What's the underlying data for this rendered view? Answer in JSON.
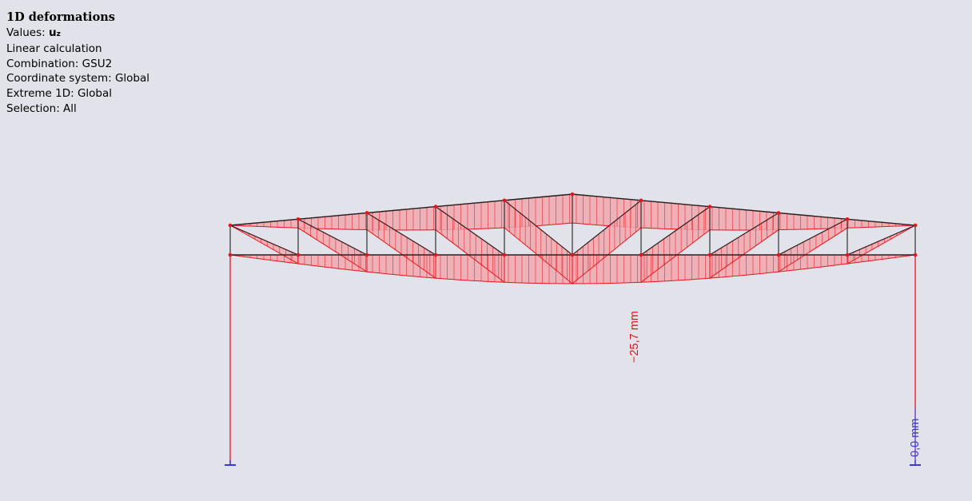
{
  "info_panel": {
    "title": "1D deformations",
    "values_label": "Values: ",
    "values_symbol": "u",
    "values_subscript": "z",
    "calculation": "Linear calculation",
    "combination": "Combination: GSU2",
    "coordinate_system": "Coordinate system: Global",
    "extreme": "Extreme 1D: Global",
    "selection": "Selection: All"
  },
  "results": {
    "max_label": "−25,7 mm",
    "support_label": "0,0 mm"
  },
  "colors": {
    "background": "#e1e2ea",
    "deformation_fill": "#f0a8ae",
    "deformation_line": "#e8141c",
    "member_line": "#222222",
    "support_color": "#3a3ad8"
  }
}
